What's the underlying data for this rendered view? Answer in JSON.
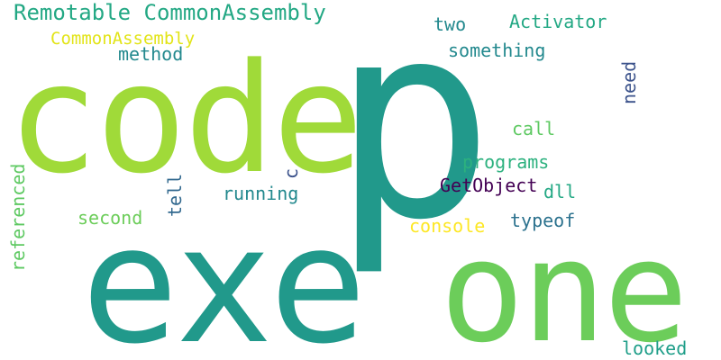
{
  "words": {
    "p": {
      "text": "p",
      "color": "#21998b"
    },
    "code": {
      "text": "code",
      "color": "#a0da39"
    },
    "exe": {
      "text": "exe",
      "color": "#21998b"
    },
    "one": {
      "text": "one",
      "color": "#6ccd5a"
    },
    "remotable": {
      "text": "Remotable CommonAssembly",
      "color": "#23a884"
    },
    "common_assembly": {
      "text": "CommonAssembly",
      "color": "#e2e418"
    },
    "method": {
      "text": "method",
      "color": "#23898e"
    },
    "two": {
      "text": "two",
      "color": "#23898e"
    },
    "activator": {
      "text": "Activator",
      "color": "#23a884"
    },
    "something": {
      "text": "something",
      "color": "#23898e"
    },
    "need": {
      "text": "need",
      "color": "#3b528b"
    },
    "call": {
      "text": "call",
      "color": "#5ec962"
    },
    "programs": {
      "text": "programs",
      "color": "#2cb17e"
    },
    "getobject": {
      "text": "GetObject",
      "color": "#440154"
    },
    "dll": {
      "text": "dll",
      "color": "#23a884"
    },
    "c": {
      "text": "c",
      "color": "#3b528b"
    },
    "tell": {
      "text": "tell",
      "color": "#31688e"
    },
    "running": {
      "text": "running",
      "color": "#23898e"
    },
    "referenced": {
      "text": "referenced",
      "color": "#5ec962"
    },
    "second": {
      "text": "second",
      "color": "#6ccd5a"
    },
    "console": {
      "text": "console",
      "color": "#fde725"
    },
    "typeof": {
      "text": "typeof",
      "color": "#2c728e"
    },
    "looked": {
      "text": "looked",
      "color": "#1f9e89"
    }
  }
}
